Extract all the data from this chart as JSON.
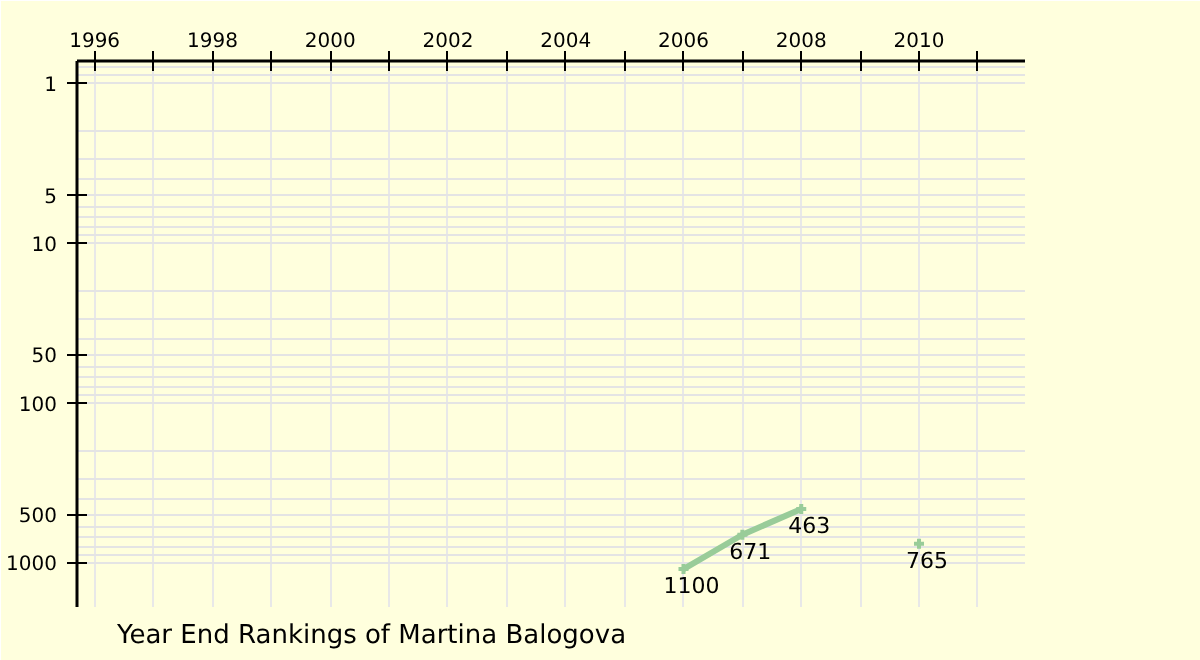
{
  "chart_data": {
    "type": "line",
    "title": "Year End Rankings of  Martina Balogova",
    "x": [
      2006,
      2007,
      2008,
      2009,
      2010
    ],
    "series": [
      {
        "color": "#99cc99",
        "values": [
          1100,
          671,
          463,
          null,
          765
        ]
      }
    ],
    "xlim": [
      1995.7,
      2011.8
    ],
    "xticks": [
      1996,
      {
        "value": 1997,
        "label": null
      },
      1998,
      {
        "value": 1999,
        "label": null
      },
      2000,
      {
        "value": 2001,
        "label": null
      },
      2002,
      {
        "value": 2003,
        "label": null
      },
      2004,
      {
        "value": 2005,
        "label": null
      },
      2006,
      {
        "value": 2007,
        "label": null
      },
      2008,
      {
        "value": 2009,
        "label": null
      },
      2010,
      {
        "value": 2011,
        "label": null
      }
    ],
    "ylim": [
      1900,
      0.73
    ],
    "yticks": [
      1,
      5,
      10,
      50,
      100,
      500,
      1000
    ],
    "log": "y",
    "grid": true,
    "marker": "cross",
    "line_style": "solid",
    "data_labels": true
  }
}
